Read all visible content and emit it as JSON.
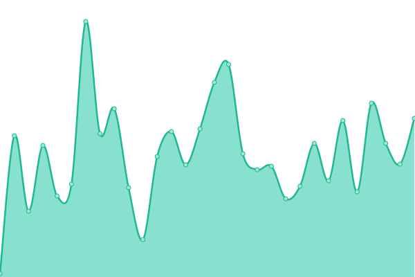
{
  "chart_data": {
    "type": "area",
    "values": [
      5,
      204,
      95,
      190,
      117,
      134,
      369,
      207,
      243,
      129,
      54,
      174,
      210,
      162,
      214,
      281,
      307,
      178,
      155,
      160,
      113,
      131,
      193,
      139,
      226,
      123,
      251,
      193,
      163,
      229
    ],
    "ylim": [
      0,
      400
    ],
    "color": "#1fb892",
    "fill_color": "#88e0ce",
    "point_color": "#9ce8d6"
  }
}
